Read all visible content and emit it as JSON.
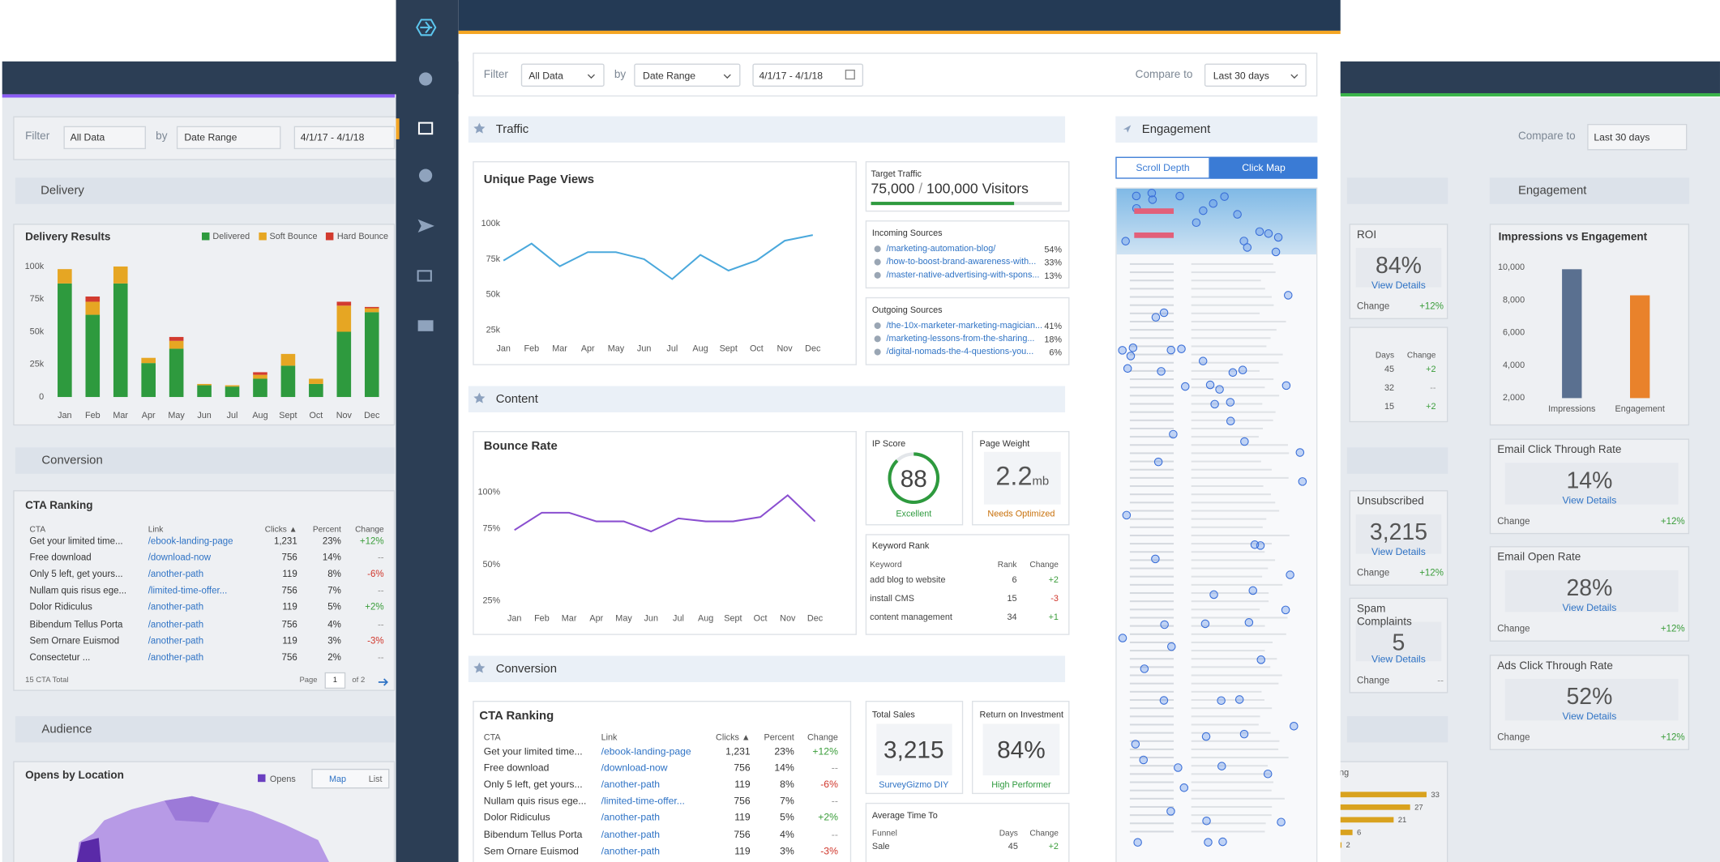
{
  "filter": {
    "label": "Filter",
    "data": "All Data",
    "by": "by",
    "range": "Date Range",
    "dates": "4/1/17 - 4/1/18",
    "compare": "Compare to",
    "period": "Last 30 days"
  },
  "traffic": {
    "header": "Traffic",
    "page_views": {
      "type": "line",
      "title": "Unique Page Views",
      "color": "#4aa8dc",
      "categories": [
        "Jan",
        "Feb",
        "Mar",
        "Apr",
        "May",
        "Jun",
        "Jul",
        "Aug",
        "Sept",
        "Oct",
        "Nov",
        "Dec"
      ],
      "values": [
        74000,
        86000,
        70000,
        80000,
        80000,
        75000,
        61000,
        78000,
        67000,
        74000,
        88000,
        92000
      ],
      "ylim": [
        15000,
        105000
      ],
      "yticks": [
        {
          "value": 25000,
          "label": "25k"
        },
        {
          "value": 50000,
          "label": "50k"
        },
        {
          "value": 75000,
          "label": "75k"
        },
        {
          "value": 100000,
          "label": "100k"
        }
      ]
    },
    "target": {
      "title": "Target Traffic",
      "values": [
        75000,
        100000
      ],
      "value_labels": [
        "75,000",
        "100,000"
      ],
      "separator": "/",
      "unit": "Visitors",
      "color": "#2e9a3e"
    },
    "incoming": {
      "title": "Incoming Sources",
      "rows": [
        [
          "/marketing-automation-blog/",
          "54%"
        ],
        [
          "/how-to-boost-brand-awareness-with...",
          "33%"
        ],
        [
          "/master-native-advertising-with-spons...",
          "13%"
        ]
      ]
    },
    "outgoing": {
      "title": "Outgoing Sources",
      "rows": [
        [
          "/the-10x-marketer-marketing-magician...",
          "41%"
        ],
        [
          "/marketing-lessons-from-the-sharing...",
          "18%"
        ],
        [
          "/digital-nomads-the-4-questions-you...",
          "6%"
        ]
      ]
    }
  },
  "content": {
    "header": "Content",
    "bounce": {
      "type": "line",
      "title": "Bounce Rate",
      "color": "#8a4fd0",
      "categories": [
        "Jan",
        "Feb",
        "Mar",
        "Apr",
        "May",
        "Jun",
        "Jul",
        "Aug",
        "Sept",
        "Oct",
        "Nov",
        "Dec"
      ],
      "values": [
        74,
        86,
        86,
        80,
        80,
        73,
        82,
        80,
        80,
        83,
        98,
        80
      ],
      "ylim": [
        18,
        105
      ],
      "yticks": [
        {
          "value": 25,
          "label": "25%"
        },
        {
          "value": 50,
          "label": "50%"
        },
        {
          "value": 75,
          "label": "75%"
        },
        {
          "value": 100,
          "label": "100%"
        }
      ]
    },
    "ip_score": {
      "title": "IP Score",
      "value": 88,
      "range": [
        0,
        100
      ],
      "status": "Excellent",
      "color": "#2e9a3e"
    },
    "page_weight": {
      "title": "Page Weight",
      "value": "2.2",
      "unit": "mb",
      "status": "Needs Optimized"
    },
    "keyword": {
      "title": "Keyword Rank",
      "columns": [
        "Keyword",
        "Rank",
        "Change"
      ],
      "rows": [
        [
          "add blog to website",
          "6",
          "+2"
        ],
        [
          "install CMS",
          "15",
          "-3"
        ],
        [
          "content management",
          "34",
          "+1"
        ]
      ]
    }
  },
  "conversion": {
    "header": "Conversion",
    "cta": {
      "title": "CTA Ranking",
      "columns": [
        "CTA",
        "Link",
        "Clicks ▲",
        "Percent",
        "Change"
      ],
      "rows": [
        [
          "Get your limited time...",
          "/ebook-landing-page",
          "1,231",
          "23%",
          "+12%"
        ],
        [
          "Free download",
          "/download-now",
          "756",
          "14%",
          "--"
        ],
        [
          "Only 5 left, get yours...",
          "/another-path",
          "119",
          "8%",
          "-6%"
        ],
        [
          "Nullam quis risus ege...",
          "/limited-time-offer...",
          "756",
          "7%",
          "--"
        ],
        [
          "Dolor Ridiculus",
          "/another-path",
          "119",
          "5%",
          "+2%"
        ],
        [
          "Bibendum Tellus Porta",
          "/another-path",
          "756",
          "4%",
          "--"
        ],
        [
          "Sem Ornare Euismod",
          "/another-path",
          "119",
          "3%",
          "-3%"
        ],
        [
          "Consectetur ...",
          "/another-path",
          "756",
          "2%",
          "--"
        ]
      ],
      "total": "15 CTA Total",
      "page": "Page",
      "page_no": "1",
      "of": "of 2"
    },
    "sales": {
      "title": "Total Sales",
      "value": "3,215",
      "note": "SurveyGizmo DIY"
    },
    "roi": {
      "title": "Return on Investment",
      "value": "84%",
      "note": "High Performer"
    },
    "avg_time": {
      "title": "Average Time To",
      "columns": [
        "Funnel",
        "Days",
        "Change"
      ],
      "rows": [
        [
          "Sale",
          "45",
          "+2"
        ]
      ]
    }
  },
  "engagement": {
    "header": "Engagement",
    "tabs": [
      "Scroll Depth",
      "Click Map"
    ]
  },
  "background": {
    "delivery": {
      "header": "Delivery",
      "chart": {
        "type": "bar",
        "stacked": true,
        "title": "Delivery Results",
        "categories": [
          "Jan",
          "Feb",
          "Mar",
          "Apr",
          "May",
          "Jun",
          "Jul",
          "Aug",
          "Sept",
          "Oct",
          "Nov",
          "Dec"
        ],
        "series": [
          {
            "name": "Delivered",
            "color": "#2e9a3e",
            "values": [
              87000,
              63000,
              87000,
              26000,
              37000,
              9000,
              8000,
              14000,
              24000,
              10000,
              50000,
              65000
            ]
          },
          {
            "name": "Soft Bounce",
            "color": "#e6a623",
            "values": [
              11000,
              10000,
              13000,
              4000,
              6000,
              1000,
              1000,
              3000,
              9000,
              4000,
              20000,
              3000
            ]
          },
          {
            "name": "Hard Bounce",
            "color": "#d23b2f",
            "values": [
              0,
              4000,
              0,
              0,
              3000,
              0,
              0,
              2000,
              0,
              0,
              3000,
              1000
            ]
          }
        ],
        "ylim": [
          0,
          100000
        ],
        "yticks": [
          0,
          {
            "value": 25000,
            "label": "25k"
          },
          {
            "value": 50000,
            "label": "50k"
          },
          {
            "value": 75000,
            "label": "75k"
          },
          {
            "value": 100000,
            "label": "100k"
          }
        ]
      }
    },
    "conversion_header": "Conversion",
    "audience": {
      "header": "Audience",
      "title": "Opens by Location",
      "legend": "Opens",
      "color": "#6a3fc0",
      "views": [
        "Map",
        "List"
      ]
    },
    "engagement_header": "Engagement",
    "impressions": {
      "type": "bar",
      "title": "Impressions vs Engagement",
      "categories": [
        "Impressions",
        "Engagement"
      ],
      "values": [
        9900,
        8300
      ],
      "colors": [
        "#5a7090",
        "#e9822b"
      ],
      "ylim": [
        2000,
        10000
      ],
      "yticks": [
        {
          "value": 2000,
          "label": "2,000"
        },
        {
          "value": 4000,
          "label": "4,000"
        },
        {
          "value": 6000,
          "label": "6,000"
        },
        {
          "value": 8000,
          "label": "8,000"
        },
        {
          "value": 10000,
          "label": "10,000"
        }
      ]
    },
    "kpis": [
      {
        "title": "Email Click Through Rate",
        "value": "14%",
        "link": "View Details",
        "change_label": "Change",
        "change": "+12%"
      },
      {
        "title": "Email Open Rate",
        "value": "28%",
        "link": "View Details",
        "change_label": "Change",
        "change": "+12%"
      },
      {
        "title": "Ads Click Through Rate",
        "value": "52%",
        "link": "View Details",
        "change_label": "Change",
        "change": "+12%"
      }
    ],
    "mid_kpis": [
      {
        "title": "ROI",
        "value": "84%",
        "link": "View Details",
        "change_label": "Change",
        "change": "+12%"
      },
      {
        "title": "Unsubscribed",
        "value": "3,215",
        "link": "View Details",
        "change_label": "Change",
        "change": "+12%"
      },
      {
        "title": "Spam Complaints",
        "value": "5",
        "link": "View Details",
        "change_label": "Change",
        "change": "--"
      }
    ],
    "days": {
      "columns": [
        "Days",
        "Change"
      ],
      "rows": [
        [
          "45",
          "+2"
        ],
        [
          "32",
          "--"
        ],
        [
          "15",
          "+2"
        ]
      ]
    },
    "bars": {
      "type": "bar",
      "title": "ing",
      "values": [
        33,
        27,
        21,
        6,
        2
      ],
      "color": "#d9a21e",
      "xlim": [
        0,
        36
      ]
    }
  }
}
